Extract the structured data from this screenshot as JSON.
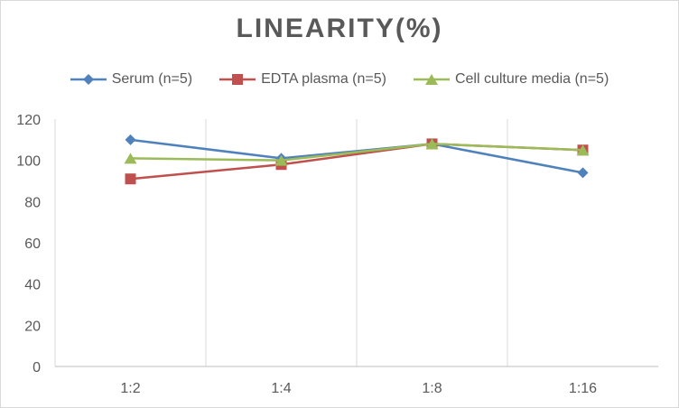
{
  "chart_data": {
    "type": "line",
    "title": "LINEARITY(%)",
    "categories": [
      "1:2",
      "1:4",
      "1:8",
      "1:16"
    ],
    "ylim": [
      0,
      120
    ],
    "yticks": [
      0,
      20,
      40,
      60,
      80,
      100,
      120
    ],
    "grid": "vertical",
    "legend": "top",
    "series": [
      {
        "name": "Serum (n=5)",
        "color": "#4f81bd",
        "marker": "diamond",
        "values": [
          110,
          101,
          108,
          94
        ]
      },
      {
        "name": "EDTA plasma (n=5)",
        "color": "#c0504d",
        "marker": "square",
        "values": [
          91,
          98,
          108,
          105
        ]
      },
      {
        "name": "Cell culture media (n=5)",
        "color": "#9bbb59",
        "marker": "triangle",
        "values": [
          101,
          100,
          108,
          105
        ]
      }
    ]
  }
}
